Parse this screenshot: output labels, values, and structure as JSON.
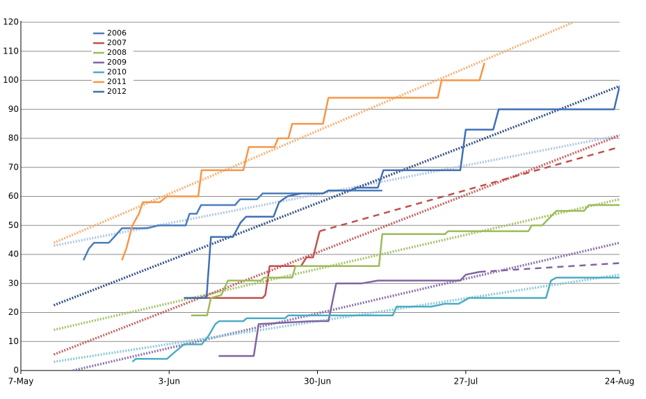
{
  "chart_data": {
    "type": "line",
    "xlim": [
      0,
      109
    ],
    "ylim": [
      0,
      120
    ],
    "xticks": [
      {
        "value": 0,
        "label": "7-May"
      },
      {
        "value": 27,
        "label": "3-Jun"
      },
      {
        "value": 54,
        "label": "30-Jun"
      },
      {
        "value": 81,
        "label": "27-Jul"
      },
      {
        "value": 109,
        "label": "24-Aug"
      }
    ],
    "yticks": [
      0,
      10,
      20,
      30,
      40,
      50,
      60,
      70,
      80,
      90,
      100,
      110,
      120
    ],
    "grid": true,
    "legend": "upper left",
    "series": [
      {
        "name": "2006",
        "color": "#4a7ebb",
        "x": [
          11.4,
          12.4,
          13.3,
          16,
          17,
          18.4,
          23,
          25,
          30,
          30.7,
          32,
          32.8,
          39,
          39.9,
          43,
          44,
          55,
          56,
          65.8
        ],
        "values": [
          38,
          42,
          44,
          44,
          46,
          49,
          49,
          50,
          50,
          54,
          54,
          57,
          57,
          59,
          59,
          61,
          61,
          62,
          62
        ],
        "trend": {
          "color": "#a9c0e2",
          "x": [
            6,
            109
          ],
          "values": [
            43,
            81
          ]
        }
      },
      {
        "name": "2007",
        "color": "#c0504d",
        "x": [
          29.7,
          44,
          44.5,
          45.3,
          51,
          52,
          53.2,
          54.4
        ],
        "values": [
          25,
          25,
          26,
          36,
          36,
          39,
          39,
          48
        ],
        "trend": {
          "color": "#c0504d",
          "x": [
            6,
            109
          ],
          "values": [
            5.5,
            81
          ]
        },
        "projection": {
          "x": [
            54.4,
            109
          ],
          "values": [
            48,
            77
          ]
        }
      },
      {
        "name": "2008",
        "color": "#9bbb59",
        "x": [
          31,
          33.9,
          34.6,
          36.5,
          37.7,
          43.7,
          44.3,
          49.4,
          50,
          65.2,
          65.8,
          77.2,
          77.8,
          92.4,
          93,
          94.9,
          97.5,
          102.5,
          103.4,
          109
        ],
        "values": [
          19,
          19,
          25,
          26,
          31,
          31,
          32,
          32,
          36,
          36,
          47,
          47,
          48,
          48,
          50,
          50,
          55,
          55,
          57,
          57
        ],
        "trend": {
          "color": "#9bbb59",
          "x": [
            6,
            109
          ],
          "values": [
            14,
            59
          ]
        }
      },
      {
        "name": "2009",
        "color": "#8064a2",
        "x": [
          36,
          42.4,
          43.3,
          53,
          56,
          57.4,
          62,
          65,
          80,
          81,
          83.5
        ],
        "values": [
          5,
          5,
          16,
          17,
          17,
          30,
          30,
          31,
          31,
          33,
          34
        ],
        "trend": {
          "color": "#8064a2",
          "x": [
            9.5,
            109
          ],
          "values": [
            0,
            44
          ]
        },
        "projection": {
          "x": [
            83.5,
            109
          ],
          "values": [
            34,
            37
          ]
        }
      },
      {
        "name": "2010",
        "color": "#4bacc6",
        "x": [
          20.3,
          20.9,
          26.6,
          27.8,
          29.7,
          32.9,
          34.2,
          35.4,
          36.1,
          40.5,
          41.1,
          48.1,
          48.7,
          67.7,
          68.4,
          74.7,
          77.2,
          79.7,
          81.6,
          95.6,
          96.5,
          97.5,
          109
        ],
        "values": [
          3,
          4,
          4,
          6,
          9,
          9,
          12,
          16,
          17,
          17,
          18,
          18,
          19,
          19,
          22,
          22,
          23,
          23,
          25,
          25,
          31,
          32,
          32
        ],
        "trend": {
          "color": "#7fc3d6",
          "x": [
            6,
            109
          ],
          "values": [
            3,
            33
          ]
        }
      },
      {
        "name": "2011",
        "color": "#f79646",
        "x": [
          18.4,
          19.2,
          20.3,
          21.5,
          22.2,
          25.3,
          26.6,
          32.3,
          32.9,
          40.5,
          41.5,
          46.2,
          46.8,
          48.7,
          49.4,
          55,
          56,
          75.9,
          76.6,
          83.5,
          84.4
        ],
        "values": [
          38,
          42,
          50,
          54,
          58,
          58,
          60,
          60,
          69,
          69,
          77,
          77,
          80,
          80,
          85,
          85,
          94,
          94,
          100,
          100,
          106
        ],
        "trend": {
          "color": "#f6a866",
          "x": [
            6,
            100.6
          ],
          "values": [
            44,
            120
          ]
        }
      },
      {
        "name": "2012",
        "color": "#3f6fb5",
        "x": [
          29.7,
          33.8,
          34.6,
          38.6,
          40,
          41,
          46,
          47,
          48.5,
          51,
          55,
          56,
          60,
          61,
          65,
          66,
          80,
          81,
          86,
          87,
          108,
          109
        ],
        "values": [
          25,
          25,
          46,
          46,
          51,
          53,
          53,
          58,
          60,
          61,
          61,
          62,
          62,
          63,
          63,
          69,
          69,
          83,
          83,
          90,
          90,
          98
        ],
        "trend": {
          "color": "#1f3e7a",
          "x": [
            6,
            109
          ],
          "values": [
            22.5,
            98
          ]
        }
      }
    ]
  }
}
